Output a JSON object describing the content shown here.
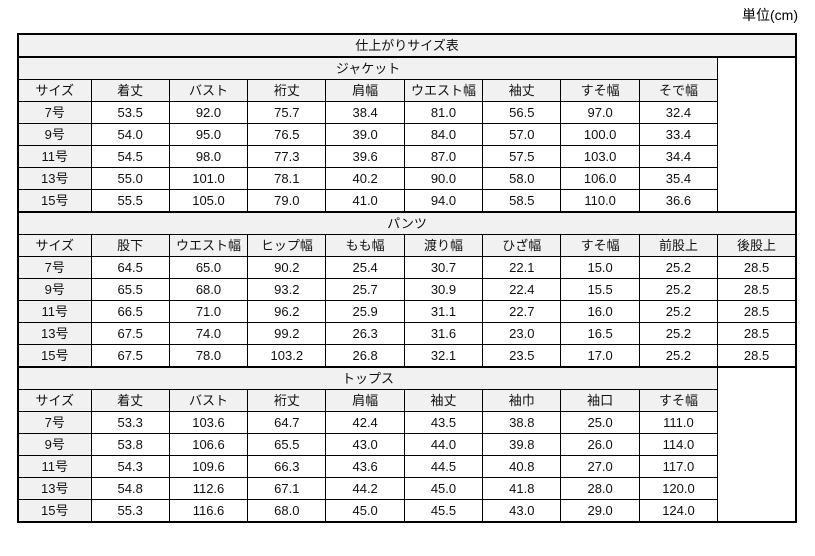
{
  "unit_label": "単位(cm)",
  "colors": {
    "header_bg": "#f1f1f1",
    "border": "#000000",
    "text": "#101010",
    "cell_bg": "#ffffff"
  },
  "table": {
    "title": "仕上がりサイズ表",
    "columns_total": 10,
    "sections": [
      {
        "name": "ジャケット",
        "span": 9,
        "headers": [
          "サイズ",
          "着丈",
          "バスト",
          "裄丈",
          "肩幅",
          "ウエスト幅",
          "袖丈",
          "すそ幅",
          "そで幅"
        ],
        "rows": [
          {
            "size": "7号",
            "values": [
              "53.5",
              "92.0",
              "75.7",
              "38.4",
              "81.0",
              "56.5",
              "97.0",
              "32.4"
            ]
          },
          {
            "size": "9号",
            "values": [
              "54.0",
              "95.0",
              "76.5",
              "39.0",
              "84.0",
              "57.0",
              "100.0",
              "33.4"
            ]
          },
          {
            "size": "11号",
            "values": [
              "54.5",
              "98.0",
              "77.3",
              "39.6",
              "87.0",
              "57.5",
              "103.0",
              "34.4"
            ]
          },
          {
            "size": "13号",
            "values": [
              "55.0",
              "101.0",
              "78.1",
              "40.2",
              "90.0",
              "58.0",
              "106.0",
              "35.4"
            ]
          },
          {
            "size": "15号",
            "values": [
              "55.5",
              "105.0",
              "79.0",
              "41.0",
              "94.0",
              "58.5",
              "110.0",
              "36.6"
            ]
          }
        ]
      },
      {
        "name": "パンツ",
        "span": 10,
        "headers": [
          "サイズ",
          "股下",
          "ウエスト幅",
          "ヒップ幅",
          "もも幅",
          "渡り幅",
          "ひざ幅",
          "すそ幅",
          "前股上",
          "後股上"
        ],
        "rows": [
          {
            "size": "7号",
            "values": [
              "64.5",
              "65.0",
              "90.2",
              "25.4",
              "30.7",
              "22.1",
              "15.0",
              "25.2",
              "28.5"
            ]
          },
          {
            "size": "9号",
            "values": [
              "65.5",
              "68.0",
              "93.2",
              "25.7",
              "30.9",
              "22.4",
              "15.5",
              "25.2",
              "28.5"
            ]
          },
          {
            "size": "11号",
            "values": [
              "66.5",
              "71.0",
              "96.2",
              "25.9",
              "31.1",
              "22.7",
              "16.0",
              "25.2",
              "28.5"
            ]
          },
          {
            "size": "13号",
            "values": [
              "67.5",
              "74.0",
              "99.2",
              "26.3",
              "31.6",
              "23.0",
              "16.5",
              "25.2",
              "28.5"
            ]
          },
          {
            "size": "15号",
            "values": [
              "67.5",
              "78.0",
              "103.2",
              "26.8",
              "32.1",
              "23.5",
              "17.0",
              "25.2",
              "28.5"
            ]
          }
        ]
      },
      {
        "name": "トップス",
        "span": 9,
        "headers": [
          "サイズ",
          "着丈",
          "バスト",
          "裄丈",
          "肩幅",
          "袖丈",
          "袖巾",
          "袖口",
          "すそ幅"
        ],
        "rows": [
          {
            "size": "7号",
            "values": [
              "53.3",
              "103.6",
              "64.7",
              "42.4",
              "43.5",
              "38.8",
              "25.0",
              "111.0"
            ]
          },
          {
            "size": "9号",
            "values": [
              "53.8",
              "106.6",
              "65.5",
              "43.0",
              "44.0",
              "39.8",
              "26.0",
              "114.0"
            ]
          },
          {
            "size": "11号",
            "values": [
              "54.3",
              "109.6",
              "66.3",
              "43.6",
              "44.5",
              "40.8",
              "27.0",
              "117.0"
            ]
          },
          {
            "size": "13号",
            "values": [
              "54.8",
              "112.6",
              "67.1",
              "44.2",
              "45.0",
              "41.8",
              "28.0",
              "120.0"
            ]
          },
          {
            "size": "15号",
            "values": [
              "55.3",
              "116.6",
              "68.0",
              "45.0",
              "45.5",
              "43.0",
              "29.0",
              "124.0"
            ]
          }
        ]
      }
    ]
  }
}
